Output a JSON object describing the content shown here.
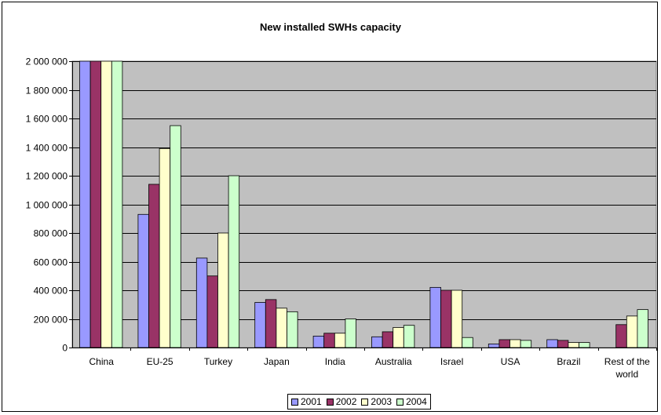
{
  "chart_data": {
    "type": "bar",
    "title": "New installed SWHs capacity",
    "xlabel": "",
    "ylabel": "",
    "ylim": [
      0,
      2000000
    ],
    "y_ticks": [
      0,
      200000,
      400000,
      600000,
      800000,
      1000000,
      1200000,
      1400000,
      1600000,
      1800000,
      2000000
    ],
    "y_tick_labels": [
      "0",
      "200 000",
      "400 000",
      "600 000",
      "800 000",
      "1 000 000",
      "1 200 000",
      "1 400 000",
      "1 600 000",
      "1 800 000",
      "2 000 000"
    ],
    "categories": [
      "China",
      "EU-25",
      "Turkey",
      "Japan",
      "India",
      "Australia",
      "Israel",
      "USA",
      "Brazil",
      "Rest of the world"
    ],
    "series": [
      {
        "name": "2001",
        "color": "#9999FF",
        "values": [
          2000000,
          930000,
          625000,
          315000,
          80000,
          75000,
          420000,
          25000,
          55000,
          0
        ]
      },
      {
        "name": "2002",
        "color": "#993366",
        "values": [
          2000000,
          1140000,
          500000,
          335000,
          100000,
          110000,
          400000,
          55000,
          50000,
          160000
        ]
      },
      {
        "name": "2003",
        "color": "#FFFFCC",
        "values": [
          2000000,
          1390000,
          800000,
          275000,
          100000,
          140000,
          400000,
          55000,
          35000,
          220000
        ]
      },
      {
        "name": "2004",
        "color": "#CCFFCC",
        "values": [
          2000000,
          1550000,
          1200000,
          250000,
          200000,
          155000,
          70000,
          50000,
          35000,
          265000
        ]
      }
    ],
    "plot_background": "#C0C0C0",
    "grid": true,
    "legend_position": "bottom"
  }
}
